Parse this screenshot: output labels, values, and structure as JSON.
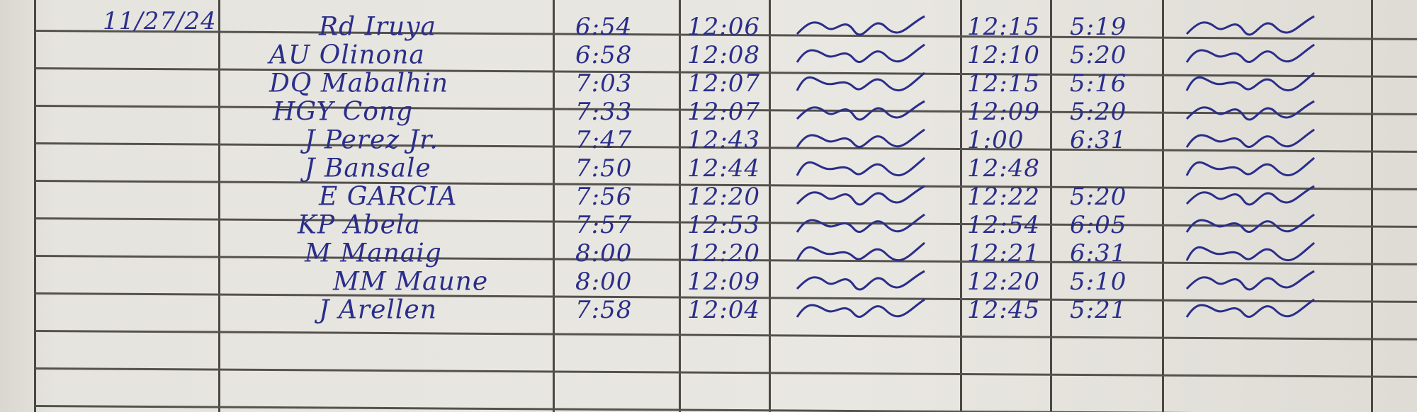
{
  "date": "11/27/24",
  "ink_color": "#2a2e8a",
  "rows": [
    {
      "name": "Rd Iruya",
      "am_in": "6:54",
      "am_out": "12:06",
      "pm_in": "12:15",
      "pm_out": "5:19"
    },
    {
      "name": "AU Olinona",
      "am_in": "6:58",
      "am_out": "12:08",
      "pm_in": "12:10",
      "pm_out": "5:20"
    },
    {
      "name": "DQ Mabalhin",
      "am_in": "7:03",
      "am_out": "12:07",
      "pm_in": "12:15",
      "pm_out": "5:16"
    },
    {
      "name": "HGY Cong",
      "am_in": "7:33",
      "am_out": "12:07",
      "pm_in": "12:09",
      "pm_out": "5:20"
    },
    {
      "name": "J Perez Jr.",
      "am_in": "7:47",
      "am_out": "12:43",
      "pm_in": "1:00",
      "pm_out": "6:31"
    },
    {
      "name": "J Bansale",
      "am_in": "7:50",
      "am_out": "12:44",
      "pm_in": "12:48",
      "pm_out": ""
    },
    {
      "name": "E GARCIA",
      "am_in": "7:56",
      "am_out": "12:20",
      "pm_in": "12:22",
      "pm_out": "5:20"
    },
    {
      "name": "KP Abela",
      "am_in": "7:57",
      "am_out": "12:53",
      "pm_in": "12:54",
      "pm_out": "6:05"
    },
    {
      "name": "M Manaig",
      "am_in": "8:00",
      "am_out": "12:20",
      "pm_in": "12:21",
      "pm_out": "6:31"
    },
    {
      "name": "MM Maune",
      "am_in": "8:00",
      "am_out": "12:09",
      "pm_in": "12:20",
      "pm_out": "5:10"
    },
    {
      "name": "J Arellen",
      "am_in": "7:58",
      "am_out": "12:04",
      "pm_in": "12:45",
      "pm_out": "5:21"
    }
  ]
}
